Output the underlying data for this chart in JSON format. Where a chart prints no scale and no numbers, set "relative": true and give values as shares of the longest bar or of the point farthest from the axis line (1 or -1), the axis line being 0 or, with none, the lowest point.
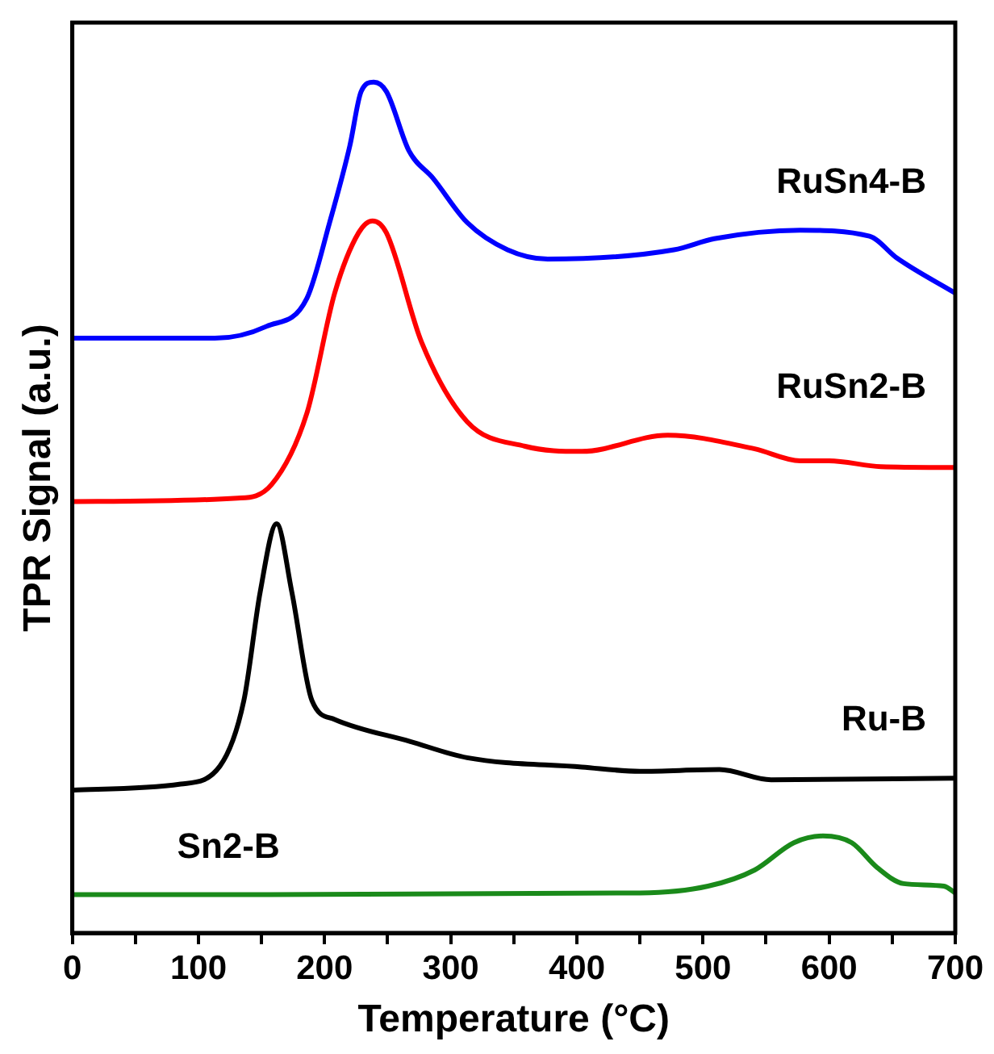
{
  "chart_data": {
    "type": "line",
    "xlabel": "Temperature (°C)",
    "ylabel": "TPR Signal (a.u.)",
    "relative": true,
    "xlim": [
      0,
      700
    ],
    "xticks": [
      0,
      {
        "value": 50,
        "label": null
      },
      100,
      {
        "value": 150,
        "label": null
      },
      200,
      {
        "value": 250,
        "label": null
      },
      300,
      {
        "value": 350,
        "label": null
      },
      400,
      {
        "value": 450,
        "label": null
      },
      500,
      {
        "value": 550,
        "label": null
      },
      600,
      {
        "value": 650,
        "label": null
      },
      700
    ],
    "grid": false,
    "legend": false,
    "marker": "none",
    "line_style": "solid",
    "series": [
      {
        "name": "RuSn4-B",
        "color": "#0000ff",
        "x": [
          1,
          113,
          154,
          186,
          204,
          220,
          229,
          239,
          249,
          267,
          286,
          313,
          345,
          377,
          477,
          509,
          577,
          632,
          654,
          700
        ],
        "values": [
          0.699,
          0.699,
          0.713,
          0.746,
          0.835,
          0.925,
          0.989,
          1.0,
          0.989,
          0.919,
          0.887,
          0.835,
          0.803,
          0.792,
          0.803,
          0.816,
          0.826,
          0.819,
          0.793,
          0.752
        ]
      },
      {
        "name": "RuSn2-B",
        "color": "#ff0000",
        "x": [
          1,
          131,
          158,
          186,
          208,
          227,
          238,
          249,
          277,
          313,
          359,
          404,
          472,
          541,
          577,
          600,
          641,
          700
        ],
        "values": [
          0.507,
          0.511,
          0.527,
          0.611,
          0.752,
          0.823,
          0.837,
          0.823,
          0.694,
          0.601,
          0.572,
          0.566,
          0.585,
          0.569,
          0.555,
          0.555,
          0.548,
          0.547
        ]
      },
      {
        "name": "Ru-B",
        "color": "#000000",
        "x": [
          1,
          86,
          117,
          136,
          149,
          162,
          174,
          190,
          208,
          268,
          313,
          404,
          450,
          513,
          554,
          700
        ],
        "values": [
          0.168,
          0.175,
          0.196,
          0.273,
          0.401,
          0.481,
          0.401,
          0.273,
          0.251,
          0.225,
          0.206,
          0.195,
          0.19,
          0.192,
          0.18,
          0.182
        ]
      },
      {
        "name": "Sn2-B",
        "color": "#1a8a1a",
        "x": [
          1,
          450,
          504,
          541,
          572,
          595,
          618,
          638,
          659,
          691,
          700
        ],
        "values": [
          0.045,
          0.047,
          0.055,
          0.074,
          0.106,
          0.114,
          0.106,
          0.077,
          0.058,
          0.055,
          0.047
        ]
      }
    ]
  }
}
